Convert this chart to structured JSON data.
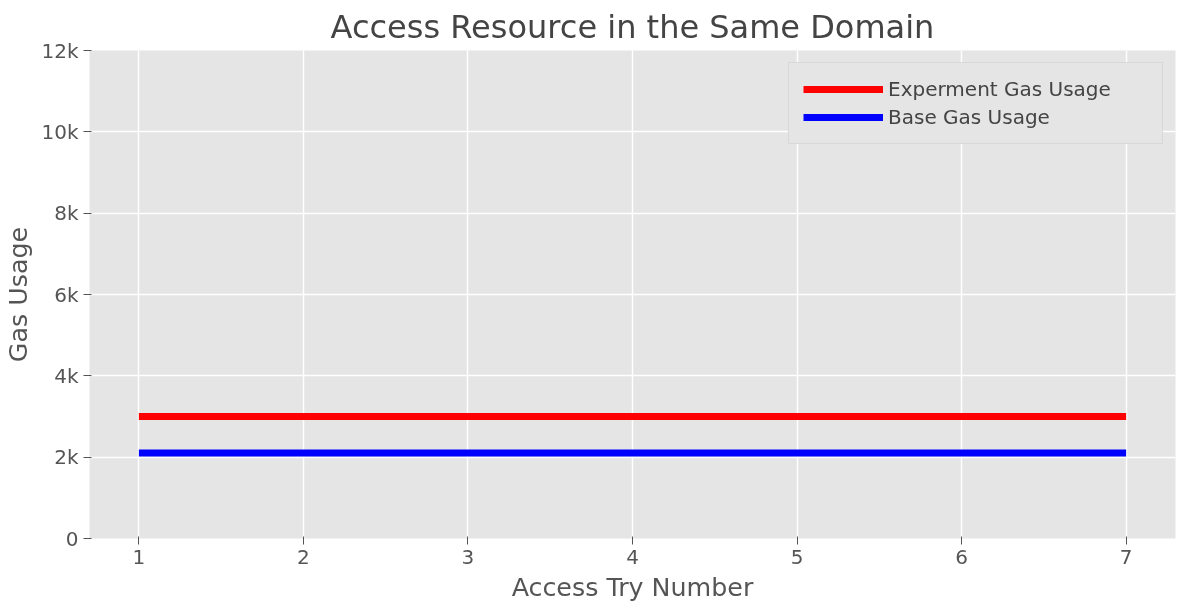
{
  "chart_data": {
    "type": "line",
    "title": "Access Resource in the Same Domain",
    "xlabel": "Access Try Number",
    "ylabel": "Gas Usage",
    "x": [
      1,
      7
    ],
    "series": [
      {
        "name": "Experment Gas Usage",
        "color": "#ff0000",
        "values": [
          3000,
          3000
        ]
      },
      {
        "name": "Base Gas Usage",
        "color": "#0000ff",
        "values": [
          2100,
          2100
        ]
      }
    ],
    "xlim": [
      0.7,
      7.3
    ],
    "xticks": [
      1,
      2,
      3,
      4,
      5,
      6,
      7
    ],
    "ylim": [
      0,
      12000
    ],
    "yticks": [
      {
        "value": 0,
        "label": "0"
      },
      {
        "value": 2000,
        "label": "2k"
      },
      {
        "value": 4000,
        "label": "4k"
      },
      {
        "value": 6000,
        "label": "6k"
      },
      {
        "value": 8000,
        "label": "8k"
      },
      {
        "value": 10000,
        "label": "10k"
      },
      {
        "value": 12000,
        "label": "12k"
      }
    ],
    "grid": true,
    "legend": "top right",
    "marker": "none",
    "line_style": "solid"
  }
}
